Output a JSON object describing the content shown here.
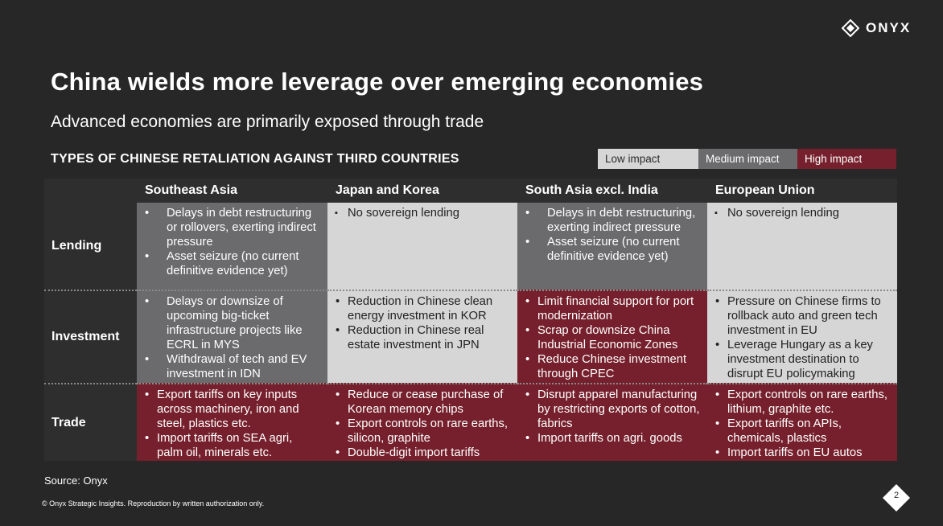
{
  "brand": {
    "name": "ONYX"
  },
  "title": "China wields more leverage over emerging economies",
  "subtitle": "Advanced economies are primarily exposed through trade",
  "section_heading": "TYPES OF CHINESE RETALIATION AGAINST THIRD COUNTRIES",
  "legend": {
    "low": "Low impact",
    "medium": "Medium impact",
    "high": "High impact"
  },
  "colors": {
    "low": "#d7d6d7",
    "medium": "#6b6a6c",
    "high": "#75202c",
    "background": "#272727"
  },
  "columns": [
    "Southeast Asia",
    "Japan and Korea",
    "South Asia excl. India",
    "European Union"
  ],
  "rows": [
    {
      "label": "Lending",
      "cells": [
        {
          "impact": "medium",
          "items": [
            "Delays in debt restructuring or rollovers, exerting indirect pressure",
            "Asset seizure (no current definitive evidence yet)"
          ]
        },
        {
          "impact": "low",
          "items": [
            "No sovereign lending"
          ]
        },
        {
          "impact": "medium",
          "items": [
            "Delays in debt restructuring, exerting indirect pressure",
            "Asset seizure (no current definitive evidence yet)"
          ]
        },
        {
          "impact": "low",
          "items": [
            "No sovereign lending"
          ]
        }
      ]
    },
    {
      "label": "Investment",
      "cells": [
        {
          "impact": "medium",
          "items": [
            "Delays or downsize of upcoming big-ticket infrastructure projects like ECRL in MYS",
            "Withdrawal of tech and EV investment in IDN"
          ]
        },
        {
          "impact": "low",
          "items": [
            "Reduction in Chinese clean energy investment in KOR",
            "Reduction in Chinese real estate investment in JPN"
          ]
        },
        {
          "impact": "high",
          "items": [
            "Limit financial support for port modernization",
            "Scrap or downsize China Industrial Economic Zones",
            "Reduce Chinese investment through CPEC"
          ]
        },
        {
          "impact": "low",
          "items": [
            "Pressure on Chinese firms to rollback auto and green tech investment in EU",
            "Leverage Hungary as a key investment destination to disrupt EU policymaking"
          ]
        }
      ]
    },
    {
      "label": "Trade",
      "cells": [
        {
          "impact": "high",
          "items": [
            "Export tariffs on key inputs across machinery, iron and steel, plastics etc.",
            "Import tariffs on SEA agri, palm oil, minerals etc."
          ]
        },
        {
          "impact": "high",
          "items": [
            "Reduce or cease purchase of Korean memory chips",
            "Export controls on rare earths, silicon, graphite",
            "Double-digit import tariffs"
          ]
        },
        {
          "impact": "high",
          "items": [
            "Disrupt apparel manufacturing by restricting exports of cotton, fabrics",
            "Import tariffs on agri. goods"
          ]
        },
        {
          "impact": "high",
          "items": [
            "Export controls on rare earths, lithium, graphite etc.",
            "Export tariffs on APIs, chemicals, plastics",
            "Import tariffs on EU autos"
          ]
        }
      ]
    }
  ],
  "source": "Source: Onyx",
  "copyright": "© Onyx Strategic Insights. Reproduction by written authorization only.",
  "page_number": "2"
}
